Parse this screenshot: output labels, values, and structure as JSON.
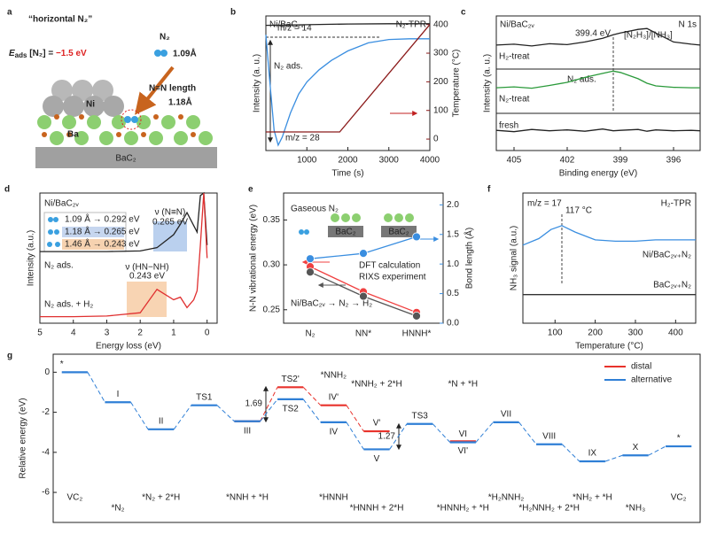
{
  "diagram": {
    "panel": "a",
    "title": "“horizontal N₂”",
    "energy_symbol": "E",
    "energy_sub": "ads",
    "energy_text": " [N₂] = ",
    "energy_value": "−1.5 eV",
    "molecule": "N₂",
    "molecule_length": "1.09Å",
    "bond_label": "N≡N length",
    "bond_length": "1.18Å",
    "metal": "Ni",
    "support_atom": "Ba",
    "substrate": "BaC₂"
  },
  "chart_data": [
    {
      "type": "line",
      "panel": "b",
      "x_label": "Time (s)",
      "y_label": "Intensity (a. u.)",
      "y2_label": "Temperature (°C)",
      "annotations": [
        "Ni/BaC₂ᵥ",
        "N₂-TPR",
        "N₂ ads."
      ],
      "xlim": [
        0,
        4000
      ],
      "xticks": [
        1000,
        2000,
        3000,
        4000
      ],
      "ylim": [
        0,
        10
      ],
      "y2lim": [
        -40,
        430
      ],
      "y2ticks": [
        0,
        100,
        200,
        300,
        400
      ],
      "series": [
        {
          "name": "m/z = 14",
          "color": "#222222",
          "x": [
            0,
            1000,
            2000,
            3000,
            4000
          ],
          "values": [
            9.3,
            9.35,
            9.4,
            9.42,
            9.42
          ]
        },
        {
          "name": "m/z = 28",
          "color": "#3a8ee0",
          "x": [
            0,
            100,
            200,
            300,
            400,
            600,
            800,
            1000,
            1300,
            1600,
            2000,
            2500,
            3000,
            3500,
            4000
          ],
          "values": [
            8.6,
            5,
            1.5,
            0.4,
            1.0,
            2.8,
            4.2,
            5.1,
            6.0,
            6.7,
            7.4,
            8.0,
            8.25,
            8.3,
            8.3
          ]
        },
        {
          "color": "#8b1a1a",
          "axis": "y2",
          "x": [
            0,
            1800,
            4000
          ],
          "values": [
            25,
            25,
            400
          ]
        }
      ]
    },
    {
      "type": "line",
      "panel": "c",
      "x_label": "Binding energy (eV)",
      "y_label": "Intensity (a. u.)",
      "annotations": [
        "Ni/BaC₂ᵥ",
        "N 1s",
        "[N₂H₃]/[NH₃]",
        "N₂ ads."
      ],
      "vline": {
        "value": 399.4,
        "label": "399.4 eV"
      },
      "xlim": [
        406,
        394.5
      ],
      "xticks": [
        405,
        402,
        399,
        396
      ],
      "ylim": [
        0,
        3
      ],
      "x": [
        406,
        405,
        404,
        403,
        402,
        401,
        400,
        399.4,
        399,
        398,
        397.5,
        397,
        396,
        395,
        394.5
      ],
      "series": [
        {
          "name": "H₂-treat",
          "color": "#222222",
          "values": [
            2.35,
            2.37,
            2.33,
            2.38,
            2.36,
            2.42,
            2.5,
            2.58,
            2.62,
            2.7,
            2.72,
            2.62,
            2.42,
            2.37,
            2.35
          ]
        },
        {
          "name": "N₂-treat",
          "color": "#2a9a3a",
          "values": [
            1.4,
            1.42,
            1.39,
            1.45,
            1.52,
            1.63,
            1.72,
            1.77,
            1.74,
            1.6,
            1.5,
            1.44,
            1.41,
            1.4,
            1.4
          ]
        },
        {
          "name": "fresh",
          "color": "#222222",
          "values": [
            0.45,
            0.42,
            0.47,
            0.44,
            0.46,
            0.43,
            0.48,
            0.44,
            0.45,
            0.47,
            0.43,
            0.46,
            0.44,
            0.45,
            0.44
          ]
        }
      ]
    },
    {
      "type": "line",
      "panel": "d",
      "x_label": "Energy loss (eV)",
      "y_label": "Intensity (a.u.)",
      "annotations": [
        "Ni/BaC₂ᵥ",
        "1.09 Å → 0.292 eV",
        "1.18 Å → 0.265 eV",
        "1.46 Å → 0.243 eV",
        "ν (N≡N)",
        "0.265 eV",
        "ν (HN−NH)",
        "0.243 eV"
      ],
      "xlim": [
        5,
        -0.3
      ],
      "xticks": [
        5,
        4,
        3,
        2,
        1,
        0
      ],
      "ylim": [
        0,
        10
      ],
      "x": [
        5,
        4,
        3,
        2,
        1.5,
        1,
        0.8,
        0.6,
        0.4,
        0.3,
        0.2,
        0.1,
        0
      ],
      "series": [
        {
          "name": "N₂ ads.",
          "color": "#222222",
          "values": [
            5.5,
            5.5,
            5.5,
            5.55,
            5.8,
            6.8,
            7.6,
            8.5,
            7.5,
            7.0,
            9.8,
            10,
            6
          ]
        },
        {
          "name": "N₂ ads. + H₂",
          "color": "#e03030",
          "values": [
            0.5,
            0.5,
            0.55,
            0.8,
            2.6,
            1.8,
            2.0,
            1.2,
            1.8,
            2.5,
            6,
            10,
            5
          ]
        }
      ]
    },
    {
      "type": "line",
      "panel": "e",
      "categories": [
        "N₂",
        "NN*",
        "HNNH*"
      ],
      "y_label": "N-N vibrational energy (eV)",
      "y2_label": "Bond length (Å)",
      "annotations": [
        "Gaseous N₂",
        "BaC₂",
        "BaC₂",
        "Ni/BaC₂ᵥ → N₂ → H₂"
      ],
      "ylim": [
        0.235,
        0.38
      ],
      "yticks": [
        0.25,
        {
          "value": 0.3,
          "label": "0.30"
        },
        0.35
      ],
      "y2lim": [
        0,
        2.2
      ],
      "y2ticks": [
        {
          "value": 0,
          "label": "0.0"
        },
        0.5,
        {
          "value": 1,
          "label": "1.0"
        },
        1.5,
        {
          "value": 2,
          "label": "2.0"
        }
      ],
      "legend": "center-right",
      "series": [
        {
          "name": "DFT calculation",
          "color": "#f04040",
          "values": [
            0.298,
            0.27,
            0.247
          ]
        },
        {
          "name": "RIXS experiment",
          "color": "#555555",
          "values": [
            0.292,
            0.265,
            0.243
          ]
        },
        {
          "color": "#3a8ee0",
          "axis": "y2",
          "values": [
            1.09,
            1.18,
            1.46
          ]
        }
      ]
    },
    {
      "type": "line",
      "panel": "f",
      "x_label": "Temperature (°C)",
      "y_label": "NH₃ signal (a.u.)",
      "annotations": [
        "m/z = 17",
        "H₂-TPR"
      ],
      "vline": {
        "value": 117,
        "label": "117 °C"
      },
      "xlim": [
        20,
        450
      ],
      "xticks": [
        100,
        200,
        300,
        400
      ],
      "ylim": [
        0,
        10
      ],
      "x": [
        20,
        60,
        90,
        117,
        150,
        200,
        250,
        300,
        350,
        400,
        450
      ],
      "series": [
        {
          "name": "Ni/BaC₂ᵥ₊N₂",
          "color": "#3a8ee0",
          "values": [
            6.0,
            6.5,
            7.2,
            7.5,
            7.0,
            6.4,
            6.3,
            6.3,
            6.4,
            6.4,
            6.4
          ]
        },
        {
          "name": "BaC₂ᵥ₊N₂",
          "color": "#333333",
          "values": [
            2.2,
            2.2,
            2.2,
            2.2,
            2.2,
            2.2,
            2.2,
            2.2,
            2.2,
            2.2,
            2.2
          ]
        }
      ]
    },
    {
      "type": "energy_diagram",
      "panel": "g",
      "y_label": "Relative energy (eV)",
      "ylim": [
        -7.5,
        0.9
      ],
      "yticks": [
        0,
        -2,
        -4,
        -6
      ],
      "categories": [
        "*",
        "I",
        "II",
        "TS1",
        "III",
        "TS2",
        "IV",
        "V",
        "TS3",
        "VI",
        "VII",
        "VIII",
        "IX",
        "X",
        "*"
      ],
      "annotations": [
        "1.69",
        "1.27"
      ],
      "legend": "upper-right",
      "series": [
        {
          "name": "distal",
          "color": "#e8322b",
          "values": [
            null,
            null,
            null,
            null,
            -2.45,
            -0.75,
            -1.65,
            -2.95,
            null,
            -3.45,
            null,
            null,
            null,
            null,
            null
          ],
          "level_labels": [
            null,
            null,
            null,
            null,
            null,
            "TS2'",
            "IV'",
            "V'",
            null,
            "VI'",
            null,
            null,
            null,
            null,
            null
          ],
          "species": [
            null,
            null,
            null,
            null,
            null,
            null,
            "*NNH₂",
            "*NNH₂ + 2*H",
            null,
            "*N + *H",
            null,
            null,
            null,
            null,
            null
          ]
        },
        {
          "name": "alternative",
          "color": "#2f7fd6",
          "values": [
            0,
            -1.5,
            -2.85,
            -1.65,
            -2.45,
            -1.35,
            -2.5,
            -3.85,
            -2.58,
            -3.5,
            -2.5,
            -3.6,
            -4.45,
            -4.15,
            -3.7
          ],
          "species": [
            "VC₂",
            "*N₂",
            "*N₂ + 2*H",
            null,
            "*NNH + *H",
            null,
            "*HNNH",
            "*HNNH + 2*H",
            null,
            "*HNNH₂ + *H",
            "*H₂NNH₂",
            "*H₂NNH₂ + 2*H",
            "*NH₂ + *H",
            "*NH₃",
            "VC₂"
          ]
        }
      ]
    }
  ]
}
